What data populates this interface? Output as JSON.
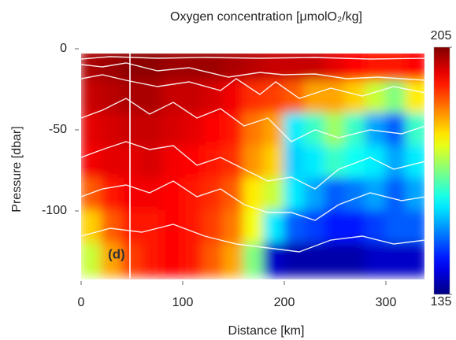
{
  "chart_data": {
    "type": "heatmap",
    "title": "Oxygen concentration [μmolO₂/kg]",
    "x_label": "Distance [km]",
    "y_label": "Pressure [dbar]",
    "annotation": "(d)",
    "x": [
      10,
      30,
      50,
      70,
      90,
      110,
      130,
      150,
      170,
      190,
      210,
      230,
      250,
      270,
      290,
      310,
      330
    ],
    "y": [
      -10,
      -30,
      -50,
      -70,
      -90,
      -110,
      -130
    ],
    "z": [
      [
        202,
        203,
        204,
        204,
        203,
        203,
        203,
        202,
        201,
        200,
        200,
        200,
        198,
        196,
        195,
        195,
        196
      ],
      [
        200,
        201,
        202,
        202,
        200,
        200,
        199,
        197,
        193,
        192,
        190,
        185,
        185,
        182,
        175,
        170,
        180
      ],
      [
        198,
        199,
        200,
        200,
        199,
        198,
        196,
        195,
        188,
        185,
        160,
        165,
        172,
        165,
        155,
        150,
        165
      ],
      [
        197,
        198,
        198,
        199,
        197,
        196,
        195,
        193,
        186,
        182,
        158,
        160,
        165,
        162,
        160,
        155,
        160
      ],
      [
        190,
        195,
        197,
        197,
        196,
        195,
        193,
        190,
        180,
        175,
        160,
        155,
        150,
        152,
        155,
        150,
        155
      ],
      [
        182,
        190,
        195,
        195,
        196,
        195,
        192,
        188,
        178,
        160,
        150,
        148,
        145,
        145,
        148,
        150,
        150
      ],
      [
        175,
        185,
        192,
        195,
        196,
        195,
        190,
        185,
        170,
        140,
        138,
        138,
        138,
        138,
        140,
        140,
        140
      ]
    ],
    "xlim": [
      0,
      340
    ],
    "ylim": [
      -150,
      0
    ],
    "xticks": [
      0,
      100,
      200,
      300
    ],
    "yticks": [
      0,
      -50,
      -100
    ],
    "clim": [
      135,
      205
    ],
    "colorbar_ticks": [
      135,
      205
    ],
    "colormap": "jet"
  }
}
